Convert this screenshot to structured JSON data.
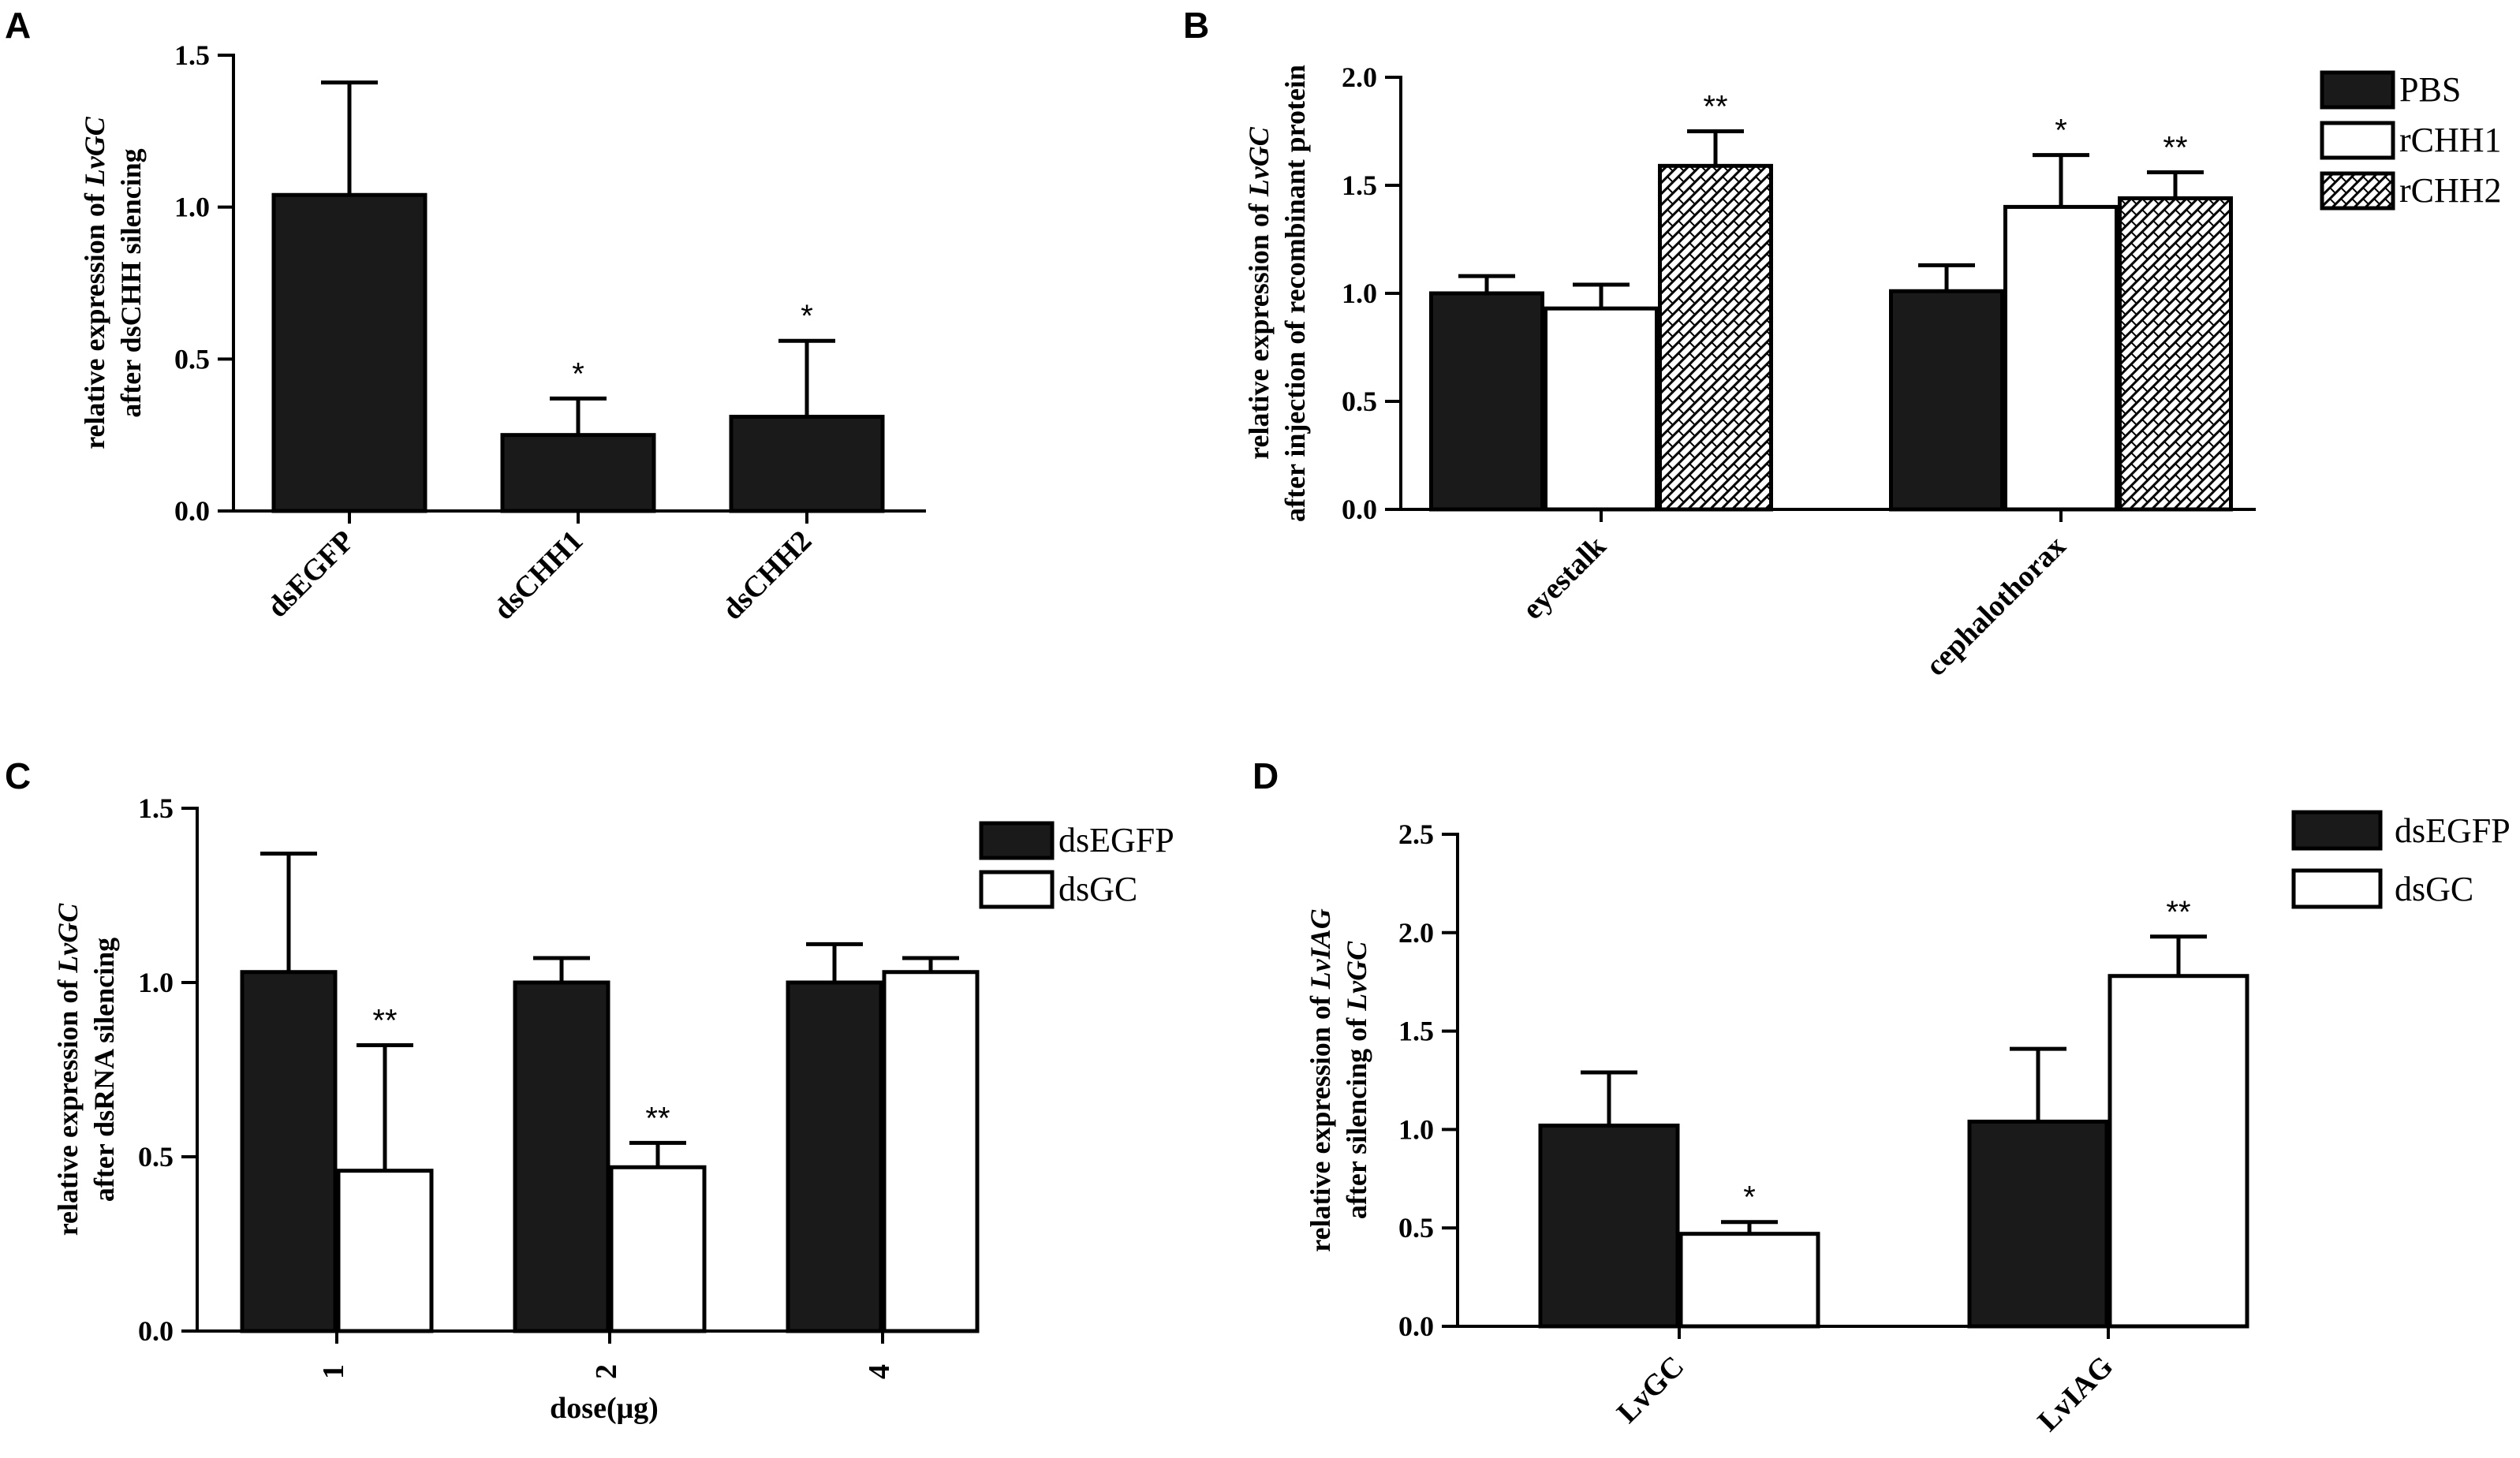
{
  "chart_data": [
    {
      "panel": "A",
      "type": "bar",
      "categories": [
        "dsEGFP",
        "dsCHH1",
        "dsCHH2"
      ],
      "series": [
        {
          "name": "",
          "style": "solid",
          "values": [
            1.04,
            0.25,
            0.31
          ],
          "errors": [
            0.37,
            0.12,
            0.25
          ],
          "significance": [
            "",
            "*",
            "*"
          ]
        }
      ],
      "ylim": [
        0,
        1.5
      ],
      "yticks": [
        "0.0",
        "0.5",
        "1.0",
        "1.5"
      ],
      "ylabel_lines": [
        [
          {
            "t": "relative expression of ",
            "i": false
          },
          {
            "t": "LvGC",
            "i": true
          }
        ],
        [
          {
            "t": "after dsCHH silencing",
            "i": false
          }
        ]
      ],
      "xlabel": "",
      "legend": false
    },
    {
      "panel": "B",
      "type": "bar",
      "categories": [
        "eyestalk",
        "cephalothorax"
      ],
      "series": [
        {
          "name": "PBS",
          "style": "solid",
          "values": [
            1.0,
            1.01
          ],
          "errors": [
            0.08,
            0.12
          ],
          "significance": [
            "",
            ""
          ]
        },
        {
          "name": "rCHH1",
          "style": "open",
          "values": [
            0.93,
            1.4
          ],
          "errors": [
            0.11,
            0.24
          ],
          "significance": [
            "",
            "*"
          ]
        },
        {
          "name": "rCHH2",
          "style": "hatched",
          "values": [
            1.59,
            1.44
          ],
          "errors": [
            0.16,
            0.12
          ],
          "significance": [
            "**",
            "**"
          ]
        }
      ],
      "ylim": [
        0,
        2.0
      ],
      "yticks": [
        "0.0",
        "0.5",
        "1.0",
        "1.5",
        "2.0"
      ],
      "ylabel_lines": [
        [
          {
            "t": "relative expression of ",
            "i": false
          },
          {
            "t": "LvGC",
            "i": true
          }
        ],
        [
          {
            "t": "after injection of recombinant protein",
            "i": false
          }
        ]
      ],
      "xlabel": "",
      "legend": true
    },
    {
      "panel": "C",
      "type": "bar",
      "categories": [
        "1",
        "2",
        "4"
      ],
      "series": [
        {
          "name": "dsEGFP",
          "style": "solid",
          "values": [
            1.03,
            1.0,
            1.0
          ],
          "errors": [
            0.34,
            0.07,
            0.11
          ],
          "significance": [
            "",
            "",
            ""
          ]
        },
        {
          "name": "dsGC",
          "style": "open",
          "values": [
            0.46,
            0.47,
            1.03
          ],
          "errors": [
            0.36,
            0.07,
            0.04
          ],
          "significance": [
            "**",
            "**",
            ""
          ]
        }
      ],
      "ylim": [
        0,
        1.5
      ],
      "yticks": [
        "0.0",
        "0.5",
        "1.0",
        "1.5"
      ],
      "ylabel_lines": [
        [
          {
            "t": "relative expression of ",
            "i": false
          },
          {
            "t": "LvGC",
            "i": true
          }
        ],
        [
          {
            "t": "after dsRNA silencing",
            "i": false
          }
        ]
      ],
      "xlabel": "dose(μg)",
      "legend": true
    },
    {
      "panel": "D",
      "type": "bar",
      "categories": [
        "LvGC",
        "LvIAG"
      ],
      "series": [
        {
          "name": "dsEGFP",
          "style": "solid",
          "values": [
            1.02,
            1.04
          ],
          "errors": [
            0.27,
            0.37
          ],
          "significance": [
            "",
            ""
          ]
        },
        {
          "name": "dsGC",
          "style": "open",
          "values": [
            0.47,
            1.78
          ],
          "errors": [
            0.06,
            0.2
          ],
          "significance": [
            "*",
            "**"
          ]
        }
      ],
      "ylim": [
        0,
        2.5
      ],
      "yticks": [
        "0.0",
        "0.5",
        "1.0",
        "1.5",
        "2.0",
        "2.5"
      ],
      "ylabel_lines": [
        [
          {
            "t": "relative expression of ",
            "i": false
          },
          {
            "t": "LvIAG",
            "i": true
          }
        ],
        [
          {
            "t": "after silencing of ",
            "i": false
          },
          {
            "t": "LvGC",
            "i": true
          }
        ]
      ],
      "xlabel": "",
      "legend": true
    }
  ]
}
